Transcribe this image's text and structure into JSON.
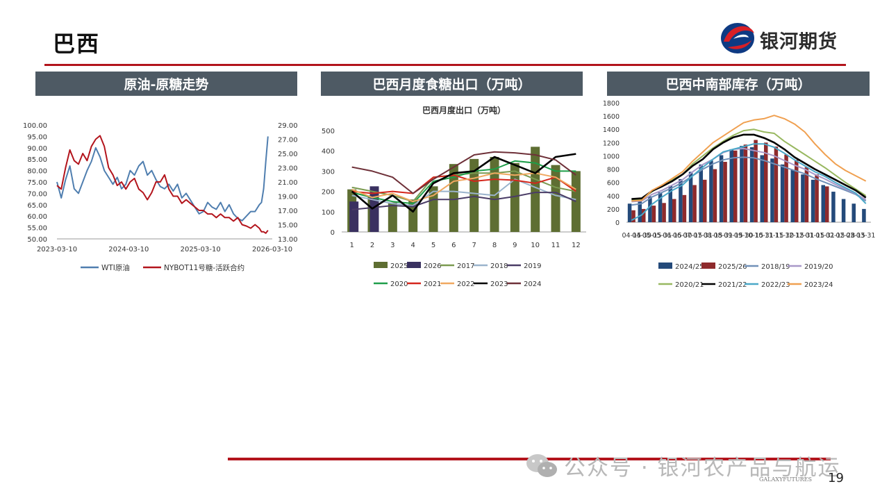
{
  "page": {
    "title": "巴西",
    "page_number": "19"
  },
  "brand": {
    "name": "银河期货",
    "footer": "GALAXYFUTURES"
  },
  "watermark": {
    "text": "公众号 · 银河农产品与航运"
  },
  "colors": {
    "accent": "#b3141c",
    "header_bg": "#4e5a64",
    "brand_blue": "#0e3a83"
  },
  "panels": [
    {
      "title": "原油-原糖走势"
    },
    {
      "title": "巴西月度食糖出口（万吨）"
    },
    {
      "title": "巴西中南部库存（万吨）"
    }
  ],
  "chart_data": [
    {
      "type": "line",
      "title": "",
      "x_ticks": [
        "2023-03-10",
        "2024-03-10",
        "2025-03-10",
        "2026-03-10"
      ],
      "y_left": {
        "ticks": [
          "100.00",
          "95.00",
          "90.00",
          "85.00",
          "80.00",
          "75.00",
          "70.00",
          "65.00",
          "60.00",
          "55.00",
          "50.00"
        ],
        "range": [
          50,
          100
        ]
      },
      "y_right": {
        "ticks": [
          "29.00",
          "27.00",
          "25.00",
          "23.00",
          "21.00",
          "19.00",
          "17.00",
          "15.00",
          "13.00"
        ],
        "range": [
          13,
          29
        ]
      },
      "series": [
        {
          "name": "WTI原油",
          "color": "#4f7eaf",
          "axis": "left",
          "values": [
            [
              0,
              75
            ],
            [
              0.02,
              68
            ],
            [
              0.04,
              76
            ],
            [
              0.06,
              82
            ],
            [
              0.08,
              72
            ],
            [
              0.1,
              70
            ],
            [
              0.12,
              75
            ],
            [
              0.14,
              80
            ],
            [
              0.16,
              84
            ],
            [
              0.18,
              90
            ],
            [
              0.2,
              86
            ],
            [
              0.22,
              80
            ],
            [
              0.24,
              77
            ],
            [
              0.26,
              74
            ],
            [
              0.28,
              77
            ],
            [
              0.3,
              72
            ],
            [
              0.32,
              74
            ],
            [
              0.34,
              80
            ],
            [
              0.36,
              78
            ],
            [
              0.38,
              82
            ],
            [
              0.4,
              84
            ],
            [
              0.42,
              78
            ],
            [
              0.44,
              80
            ],
            [
              0.46,
              76
            ],
            [
              0.48,
              73
            ],
            [
              0.5,
              72
            ],
            [
              0.52,
              74
            ],
            [
              0.54,
              71
            ],
            [
              0.56,
              74
            ],
            [
              0.58,
              68
            ],
            [
              0.6,
              70
            ],
            [
              0.62,
              67
            ],
            [
              0.64,
              64
            ],
            [
              0.66,
              61
            ],
            [
              0.68,
              62
            ],
            [
              0.7,
              66
            ],
            [
              0.72,
              64
            ],
            [
              0.74,
              63
            ],
            [
              0.76,
              66
            ],
            [
              0.78,
              62
            ],
            [
              0.8,
              65
            ],
            [
              0.82,
              61
            ],
            [
              0.84,
              59
            ],
            [
              0.86,
              58
            ],
            [
              0.88,
              60
            ],
            [
              0.9,
              62
            ],
            [
              0.92,
              62
            ],
            [
              0.94,
              65
            ],
            [
              0.95,
              66
            ],
            [
              0.96,
              72
            ],
            [
              0.97,
              84
            ],
            [
              0.98,
              95
            ]
          ]
        },
        {
          "name": "NYBOT11号糖-活跃合约",
          "color": "#b3141c",
          "axis": "right",
          "values": [
            [
              0,
              20.5
            ],
            [
              0.02,
              20
            ],
            [
              0.04,
              23
            ],
            [
              0.06,
              25.5
            ],
            [
              0.08,
              24
            ],
            [
              0.1,
              23.5
            ],
            [
              0.12,
              25
            ],
            [
              0.14,
              24
            ],
            [
              0.16,
              26
            ],
            [
              0.18,
              27
            ],
            [
              0.2,
              27.5
            ],
            [
              0.22,
              26
            ],
            [
              0.24,
              23
            ],
            [
              0.26,
              22
            ],
            [
              0.28,
              20.5
            ],
            [
              0.3,
              21
            ],
            [
              0.32,
              20
            ],
            [
              0.34,
              21
            ],
            [
              0.36,
              21.5
            ],
            [
              0.38,
              20
            ],
            [
              0.4,
              19.5
            ],
            [
              0.42,
              18.5
            ],
            [
              0.44,
              19.5
            ],
            [
              0.46,
              21
            ],
            [
              0.48,
              21
            ],
            [
              0.5,
              22
            ],
            [
              0.52,
              20
            ],
            [
              0.54,
              19
            ],
            [
              0.56,
              19
            ],
            [
              0.58,
              18
            ],
            [
              0.6,
              18.5
            ],
            [
              0.62,
              18
            ],
            [
              0.64,
              17.5
            ],
            [
              0.66,
              17
            ],
            [
              0.68,
              17
            ],
            [
              0.7,
              16.5
            ],
            [
              0.72,
              16.5
            ],
            [
              0.74,
              16
            ],
            [
              0.76,
              16.5
            ],
            [
              0.78,
              16
            ],
            [
              0.8,
              16
            ],
            [
              0.82,
              15.5
            ],
            [
              0.84,
              16
            ],
            [
              0.86,
              15
            ],
            [
              0.88,
              14.8
            ],
            [
              0.9,
              14.5
            ],
            [
              0.92,
              15
            ],
            [
              0.94,
              14.5
            ],
            [
              0.95,
              14
            ],
            [
              0.96,
              14
            ],
            [
              0.97,
              13.8
            ],
            [
              0.98,
              14.2
            ]
          ]
        }
      ],
      "legend": {
        "placement": "bottom"
      }
    },
    {
      "type": "bar",
      "title": "巴西月度出口（万吨）",
      "categories": [
        "1",
        "2",
        "3",
        "4",
        "5",
        "6",
        "7",
        "8",
        "9",
        "10",
        "11",
        "12"
      ],
      "y_ticks": [
        "500",
        "400",
        "300",
        "200",
        "100",
        "0"
      ],
      "ylim": [
        0,
        500
      ],
      "bar_series": [
        {
          "name": "2025",
          "color": "#5e6e32",
          "values": [
            210,
            180,
            145,
            160,
            225,
            335,
            360,
            370,
            340,
            420,
            330,
            300
          ]
        },
        {
          "name": "2026",
          "color": "#3a3160",
          "values": [
            150,
            225,
            null,
            null,
            null,
            null,
            null,
            null,
            null,
            null,
            null,
            null
          ]
        }
      ],
      "line_series": [
        {
          "name": "2017",
          "color": "#7a9a50",
          "values": [
            220,
            200,
            180,
            150,
            270,
            280,
            290,
            290,
            300,
            260,
            220,
            200
          ]
        },
        {
          "name": "2018",
          "color": "#9ab3cc",
          "values": [
            180,
            160,
            140,
            130,
            200,
            200,
            190,
            180,
            260,
            220,
            180,
            160
          ]
        },
        {
          "name": "2019",
          "color": "#4a3c66",
          "values": [
            110,
            120,
            130,
            125,
            160,
            160,
            175,
            160,
            175,
            195,
            195,
            150
          ]
        },
        {
          "name": "2020",
          "color": "#1e9e4a",
          "values": [
            195,
            170,
            150,
            140,
            250,
            270,
            300,
            310,
            350,
            340,
            300,
            300
          ]
        },
        {
          "name": "2021",
          "color": "#d4261c",
          "values": [
            200,
            190,
            200,
            190,
            270,
            280,
            250,
            260,
            255,
            240,
            270,
            200
          ]
        },
        {
          "name": "2022",
          "color": "#f0a860",
          "values": [
            210,
            170,
            190,
            150,
            180,
            250,
            265,
            290,
            280,
            290,
            270,
            210
          ]
        },
        {
          "name": "2023",
          "color": "#000000",
          "values": [
            200,
            115,
            180,
            100,
            240,
            290,
            300,
            370,
            330,
            290,
            370,
            385
          ]
        },
        {
          "name": "2024",
          "color": "#6e3038",
          "values": [
            320,
            300,
            270,
            190,
            260,
            320,
            380,
            395,
            390,
            380,
            355,
            280
          ]
        }
      ],
      "legend": {
        "placement": "bottom",
        "order": [
          "2025",
          "2026",
          "2017",
          "2018",
          "2019",
          "2020",
          "2021",
          "2022",
          "2023",
          "2024"
        ]
      }
    },
    {
      "type": "bar",
      "title": "",
      "categories": [
        "04-15",
        "04-30",
        "05-15",
        "05-31",
        "06-15",
        "06-30",
        "07-15",
        "07-31",
        "08-15",
        "08-31",
        "09-15",
        "09-30",
        "10-15",
        "10-31",
        "11-15",
        "11-30",
        "12-15",
        "12-31",
        "01-15",
        "01-31",
        "02-15",
        "02-28",
        "03-15",
        "03-31"
      ],
      "y_ticks": [
        "1800",
        "1600",
        "1400",
        "1200",
        "1000",
        "800",
        "600",
        "400",
        "200",
        "0"
      ],
      "ylim": [
        0,
        1800
      ],
      "bar_series": [
        {
          "name": "2024/25",
          "color": "#244a7a",
          "values": [
            280,
            320,
            390,
            450,
            550,
            650,
            760,
            870,
            930,
            1010,
            1100,
            1150,
            1130,
            1010,
            960,
            870,
            790,
            720,
            640,
            560,
            460,
            350,
            280,
            200
          ]
        },
        {
          "name": "2025/26",
          "color": "#8e2a2c",
          "values": [
            180,
            200,
            250,
            290,
            350,
            410,
            560,
            640,
            800,
            910,
            1080,
            1170,
            1240,
            1200,
            1140,
            1020,
            940,
            830,
            720,
            540,
            null,
            null,
            null,
            null
          ]
        }
      ],
      "line_series": [
        {
          "name": "2018/19",
          "color": "#7090b8",
          "values": [
            260,
            280,
            380,
            450,
            520,
            600,
            700,
            800,
            880,
            940,
            970,
            980,
            970,
            930,
            880,
            830,
            780,
            730,
            660,
            600,
            540,
            480,
            420,
            320
          ]
        },
        {
          "name": "2019/20",
          "color": "#a898c8",
          "values": [
            310,
            320,
            420,
            480,
            560,
            640,
            760,
            870,
            950,
            1050,
            1100,
            1110,
            1080,
            1050,
            1000,
            930,
            860,
            800,
            720,
            650,
            570,
            500,
            430,
            340
          ]
        },
        {
          "name": "2020/21",
          "color": "#98b860",
          "values": [
            330,
            340,
            460,
            560,
            640,
            720,
            880,
            1000,
            1120,
            1220,
            1310,
            1380,
            1400,
            1360,
            1340,
            1220,
            1120,
            1020,
            920,
            820,
            710,
            600,
            500,
            400
          ]
        },
        {
          "name": "2021/22",
          "color": "#000000",
          "values": [
            350,
            360,
            470,
            540,
            620,
            720,
            850,
            950,
            1100,
            1200,
            1280,
            1320,
            1320,
            1270,
            1200,
            1100,
            980,
            890,
            800,
            720,
            640,
            560,
            480,
            370
          ]
        },
        {
          "name": "2022/23",
          "color": "#4aa8c8",
          "values": [
            30,
            110,
            270,
            380,
            480,
            560,
            700,
            830,
            950,
            1060,
            1100,
            1140,
            1180,
            1180,
            1130,
            1040,
            940,
            850,
            760,
            690,
            600,
            520,
            440,
            280
          ]
        },
        {
          "name": "2023/24",
          "color": "#f0a050",
          "values": [
            320,
            330,
            480,
            560,
            660,
            760,
            920,
            1060,
            1200,
            1300,
            1400,
            1500,
            1540,
            1560,
            1610,
            1560,
            1480,
            1360,
            1180,
            1020,
            880,
            780,
            700,
            620
          ]
        }
      ],
      "legend": {
        "placement": "bottom",
        "order": [
          "2024/25",
          "2025/26",
          "2018/19",
          "2019/20",
          "2020/21",
          "2021/22",
          "2022/23",
          "2023/24"
        ]
      }
    }
  ]
}
